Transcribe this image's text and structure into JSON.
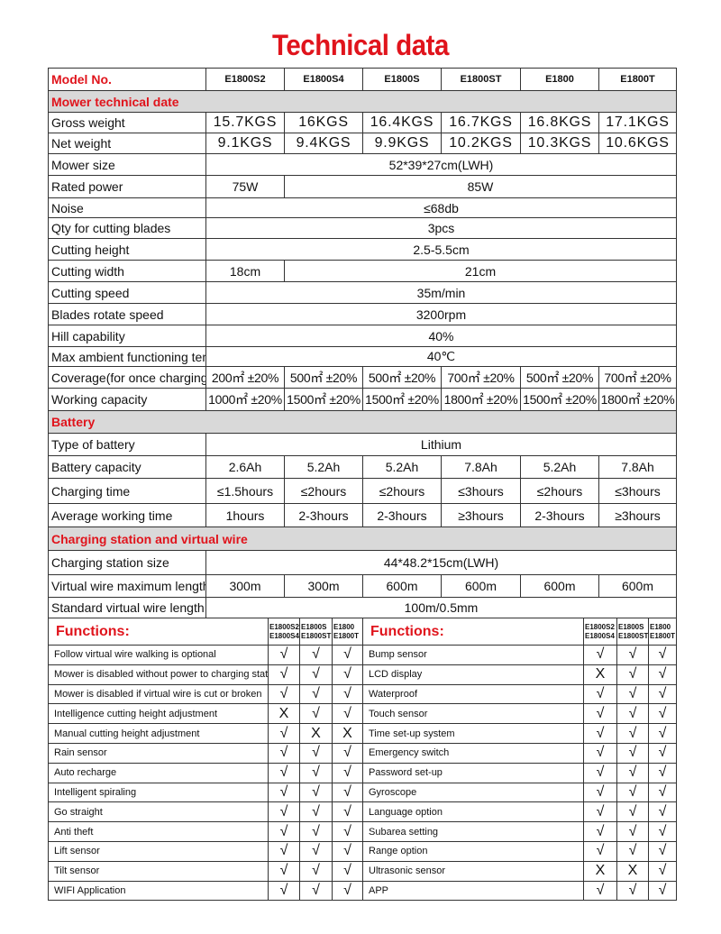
{
  "title": "Technical data",
  "colors": {
    "accent": "#e0141c",
    "section_bg": "#d9d9d9"
  },
  "specs": [
    {
      "type": "hdr",
      "label": "Model No.",
      "cells": [
        {
          "v": "E1800S2",
          "span": 1
        },
        {
          "v": "E1800S4",
          "span": 1
        },
        {
          "v": "E1800S",
          "span": 1
        },
        {
          "v": "E1800ST",
          "span": 1
        },
        {
          "v": "E1800",
          "span": 1
        },
        {
          "v": "E1800T",
          "span": 1
        }
      ],
      "h": 25
    },
    {
      "type": "sec",
      "label": "Mower technical date",
      "h": 24
    },
    {
      "type": "big",
      "label": "Gross weight",
      "cells": [
        {
          "v": "15.7KGS",
          "span": 1
        },
        {
          "v": "16KGS",
          "span": 1
        },
        {
          "v": "16.4KGS",
          "span": 1
        },
        {
          "v": "16.7KGS",
          "span": 1
        },
        {
          "v": "16.8KGS",
          "span": 1
        },
        {
          "v": "17.1KGS",
          "span": 1
        }
      ],
      "h": 23
    },
    {
      "type": "big",
      "label": "Net weight",
      "cells": [
        {
          "v": "9.1KGS",
          "span": 1
        },
        {
          "v": "9.4KGS",
          "span": 1
        },
        {
          "v": "9.9KGS",
          "span": 1
        },
        {
          "v": "10.2KGS",
          "span": 1
        },
        {
          "v": "10.3KGS",
          "span": 1
        },
        {
          "v": "10.6KGS",
          "span": 1
        }
      ],
      "h": 23
    },
    {
      "label": "Mower size",
      "cells": [
        {
          "v": "52*39*27cm(LWH)",
          "span": 6
        }
      ],
      "h": 24
    },
    {
      "label": "Rated power",
      "cells": [
        {
          "v": "75W",
          "span": 1
        },
        {
          "v": "85W",
          "span": 5
        }
      ],
      "h": 25
    },
    {
      "label": "Noise",
      "cells": [
        {
          "v": "≤68db",
          "span": 6
        }
      ],
      "h": 22
    },
    {
      "label": "Qty for cutting blades",
      "cells": [
        {
          "v": "3pcs",
          "span": 6
        }
      ],
      "h": 23
    },
    {
      "label": "Cutting height",
      "cells": [
        {
          "v": "2.5-5.5cm",
          "span": 6
        }
      ],
      "h": 24
    },
    {
      "label": "Cutting width",
      "cells": [
        {
          "v": "18cm",
          "span": 1
        },
        {
          "v": "21cm",
          "span": 5
        }
      ],
      "h": 24
    },
    {
      "label": "Cutting speed",
      "cells": [
        {
          "v": "35m/min",
          "span": 6
        }
      ],
      "h": 24
    },
    {
      "label": "Blades rotate speed",
      "cells": [
        {
          "v": "3200rpm",
          "span": 6
        }
      ],
      "h": 24
    },
    {
      "label": "Hill capability",
      "cells": [
        {
          "v": "40%",
          "span": 6
        }
      ],
      "h": 24
    },
    {
      "label": "Max ambient functioning temp.",
      "cells": [
        {
          "v": "40℃",
          "span": 6
        }
      ],
      "h": 22
    },
    {
      "type": "cov",
      "label": "Coverage(for once charging)",
      "cells": [
        {
          "v": "200㎡ ±20%",
          "span": 1
        },
        {
          "v": "500㎡ ±20%",
          "span": 1
        },
        {
          "v": "500㎡ ±20%",
          "span": 1
        },
        {
          "v": "700㎡ ±20%",
          "span": 1
        },
        {
          "v": "500㎡ ±20%",
          "span": 1
        },
        {
          "v": "700㎡ ±20%",
          "span": 1
        }
      ],
      "h": 24
    },
    {
      "type": "cov",
      "label": "Working capacity",
      "cells": [
        {
          "v": "1000㎡ ±20%",
          "span": 1
        },
        {
          "v": "1500㎡ ±20%",
          "span": 1
        },
        {
          "v": "1500㎡ ±20%",
          "span": 1
        },
        {
          "v": "1800㎡ ±20%",
          "span": 1
        },
        {
          "v": "1500㎡ ±20%",
          "span": 1
        },
        {
          "v": "1800㎡ ±20%",
          "span": 1
        }
      ],
      "h": 25
    },
    {
      "type": "sec",
      "label": "Battery",
      "h": 25
    },
    {
      "label": "Type of battery",
      "cells": [
        {
          "v": "Lithium",
          "span": 6
        }
      ],
      "h": 25
    },
    {
      "label": "Battery capacity",
      "cells": [
        {
          "v": "2.6Ah",
          "span": 1
        },
        {
          "v": "5.2Ah",
          "span": 1
        },
        {
          "v": "5.2Ah",
          "span": 1
        },
        {
          "v": "7.8Ah",
          "span": 1
        },
        {
          "v": "5.2Ah",
          "span": 1
        },
        {
          "v": "7.8Ah",
          "span": 1
        }
      ],
      "h": 25
    },
    {
      "label": "Charging time",
      "cells": [
        {
          "v": "≤1.5hours",
          "span": 1
        },
        {
          "v": "≤2hours",
          "span": 1
        },
        {
          "v": "≤2hours",
          "span": 1
        },
        {
          "v": "≤3hours",
          "span": 1
        },
        {
          "v": "≤2hours",
          "span": 1
        },
        {
          "v": "≤3hours",
          "span": 1
        }
      ],
      "h": 28
    },
    {
      "label": "Average working time",
      "cells": [
        {
          "v": "1hours",
          "span": 1
        },
        {
          "v": "2-3hours",
          "span": 1
        },
        {
          "v": "2-3hours",
          "span": 1
        },
        {
          "v": "≥3hours",
          "span": 1
        },
        {
          "v": "2-3hours",
          "span": 1
        },
        {
          "v": "≥3hours",
          "span": 1
        }
      ],
      "h": 26
    },
    {
      "type": "sec",
      "label": "Charging station and virtual wire",
      "h": 26
    },
    {
      "label": "Charging station size",
      "cells": [
        {
          "v": "44*48.2*15cm(LWH)",
          "span": 6
        }
      ],
      "h": 27
    },
    {
      "label": "Virtual wire maximum length",
      "cells": [
        {
          "v": "300m",
          "span": 1
        },
        {
          "v": "300m",
          "span": 1
        },
        {
          "v": "600m",
          "span": 1
        },
        {
          "v": "600m",
          "span": 1
        },
        {
          "v": "600m",
          "span": 1
        },
        {
          "v": "600m",
          "span": 1
        }
      ],
      "h": 25
    },
    {
      "label": "Standard virtual wire length",
      "cells": [
        {
          "v": "100m/0.5mm",
          "span": 6
        }
      ],
      "h": 23
    }
  ],
  "functions": {
    "label": "Functions:",
    "model_groups": [
      "E1800S2 E1800S4",
      "E1800S E1800ST",
      "E1800 E1800T"
    ],
    "left": [
      {
        "name": "Follow virtual wire walking is optional",
        "marks": [
          "√",
          "√",
          "√"
        ]
      },
      {
        "name": "Mower is disabled without power to charging station",
        "marks": [
          "√",
          "√",
          "√"
        ]
      },
      {
        "name": "Mower is disabled if virtual wire is cut or broken",
        "marks": [
          "√",
          "√",
          "√"
        ]
      },
      {
        "name": "Intelligence cutting height adjustment",
        "marks": [
          "X",
          "√",
          "√"
        ]
      },
      {
        "name": "Manual cutting height adjustment",
        "marks": [
          "√",
          "X",
          "X"
        ]
      },
      {
        "name": "Rain sensor",
        "marks": [
          "√",
          "√",
          "√"
        ]
      },
      {
        "name": "Auto recharge",
        "marks": [
          "√",
          "√",
          "√"
        ]
      },
      {
        "name": "Intelligent spiraling",
        "marks": [
          "√",
          "√",
          "√"
        ]
      },
      {
        "name": "Go straight",
        "marks": [
          "√",
          "√",
          "√"
        ]
      },
      {
        "name": "Anti theft",
        "marks": [
          "√",
          "√",
          "√"
        ]
      },
      {
        "name": "Lift sensor",
        "marks": [
          "√",
          "√",
          "√"
        ]
      },
      {
        "name": "Tilt sensor",
        "marks": [
          "√",
          "√",
          "√"
        ]
      },
      {
        "name": "WIFI Application",
        "marks": [
          "√",
          "√",
          "√"
        ]
      }
    ],
    "right": [
      {
        "name": "Bump sensor",
        "marks": [
          "√",
          "√",
          "√"
        ]
      },
      {
        "name": "LCD display",
        "marks": [
          "X",
          "√",
          "√"
        ]
      },
      {
        "name": "Waterproof",
        "marks": [
          "√",
          "√",
          "√"
        ]
      },
      {
        "name": "Touch sensor",
        "marks": [
          "√",
          "√",
          "√"
        ]
      },
      {
        "name": "Time set-up system",
        "marks": [
          "√",
          "√",
          "√"
        ]
      },
      {
        "name": "Emergency switch",
        "marks": [
          "√",
          "√",
          "√"
        ]
      },
      {
        "name": "Password set-up",
        "marks": [
          "√",
          "√",
          "√"
        ]
      },
      {
        "name": "Gyroscope",
        "marks": [
          "√",
          "√",
          "√"
        ]
      },
      {
        "name": "Language option",
        "marks": [
          "√",
          "√",
          "√"
        ]
      },
      {
        "name": "Subarea setting",
        "marks": [
          "√",
          "√",
          "√"
        ]
      },
      {
        "name": "Range option",
        "marks": [
          "√",
          "√",
          "√"
        ]
      },
      {
        "name": "Ultrasonic sensor",
        "marks": [
          "X",
          "X",
          "√"
        ]
      },
      {
        "name": "APP",
        "marks": [
          "√",
          "√",
          "√"
        ]
      }
    ]
  }
}
